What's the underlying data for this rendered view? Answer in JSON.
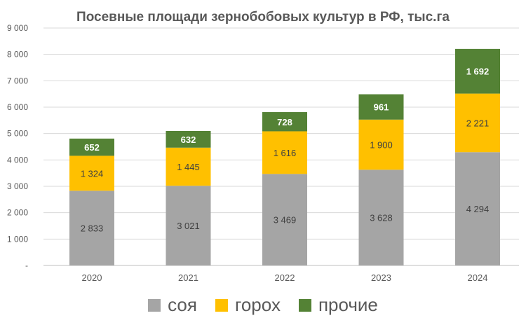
{
  "chart_data": {
    "type": "bar",
    "stacked": true,
    "title": "Посевные площади зернобобовых культур в РФ, тыс.га",
    "categories": [
      "2020",
      "2021",
      "2022",
      "2023",
      "2024"
    ],
    "series": [
      {
        "name": "соя",
        "color": "#a5a5a5",
        "values": [
          2833,
          3021,
          3469,
          3628,
          4294
        ],
        "labels": [
          "2 833",
          "3 021",
          "3 469",
          "3 628",
          "4 294"
        ]
      },
      {
        "name": "горох",
        "color": "#ffc000",
        "values": [
          1324,
          1445,
          1616,
          1900,
          2221
        ],
        "labels": [
          "1 324",
          "1 445",
          "1 616",
          "1 900",
          "2 221"
        ]
      },
      {
        "name": "прочие",
        "color": "#548235",
        "values": [
          652,
          632,
          728,
          961,
          1692
        ],
        "labels": [
          "652",
          "632",
          "728",
          "961",
          "1 692"
        ]
      }
    ],
    "ylim": [
      0,
      9000
    ],
    "yticks": [
      0,
      1000,
      2000,
      3000,
      4000,
      5000,
      6000,
      7000,
      8000,
      9000
    ],
    "ytick_labels": [
      "-",
      "1 000",
      "2 000",
      "3 000",
      "4 000",
      "5 000",
      "6 000",
      "7 000",
      "8 000",
      "9 000"
    ],
    "grid": true,
    "legend_position": "bottom"
  }
}
